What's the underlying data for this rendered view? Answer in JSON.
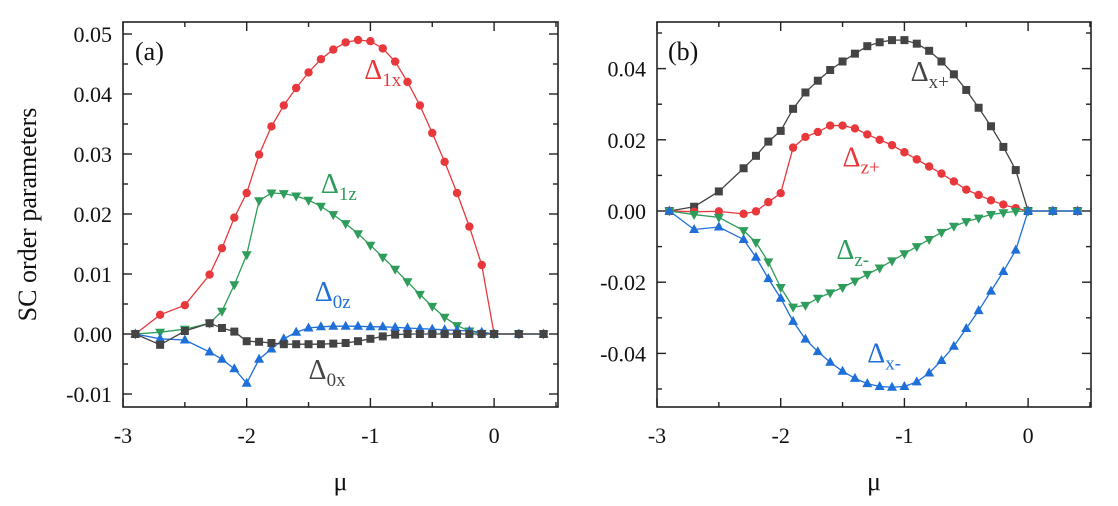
{
  "chart_data": [
    {
      "panel": "a",
      "type": "line",
      "panel_label": "(a)",
      "xlabel": "μ",
      "ylabel": "SC order parameters",
      "xlim": [
        -3.05,
        0.5
      ],
      "ylim": [
        -0.012,
        0.052
      ],
      "xticks": [
        -3,
        -2,
        -1,
        0
      ],
      "xtick_labels": [
        "-3",
        "-2",
        "-1",
        "0"
      ],
      "yticks": [
        -0.01,
        0.0,
        0.01,
        0.02,
        0.03,
        0.04,
        0.05
      ],
      "ytick_labels": [
        "-0.01",
        "0.00",
        "0.01",
        "0.02",
        "0.03",
        "0.04",
        "0.05"
      ],
      "grid": false,
      "x": [
        -2.9,
        -2.7,
        -2.5,
        -2.3,
        -2.2,
        -2.1,
        -2.0,
        -1.9,
        -1.8,
        -1.7,
        -1.6,
        -1.5,
        -1.4,
        -1.3,
        -1.2,
        -1.1,
        -1.0,
        -0.9,
        -0.8,
        -0.7,
        -0.6,
        -0.5,
        -0.4,
        -0.3,
        -0.2,
        -0.1,
        0.0,
        0.2,
        0.4
      ],
      "series": [
        {
          "name": "Δ1x",
          "base": "Δ",
          "sub": "1x",
          "color": "#e8383b",
          "marker": "circle",
          "values": [
            0.0,
            0.0032,
            0.0048,
            0.0099,
            0.0143,
            0.0194,
            0.0235,
            0.0299,
            0.0346,
            0.0381,
            0.041,
            0.0436,
            0.0458,
            0.0474,
            0.0486,
            0.049,
            0.0488,
            0.0476,
            0.0454,
            0.042,
            0.0381,
            0.0335,
            0.0287,
            0.0235,
            0.0179,
            0.0115,
            0.0,
            0.0,
            0.0
          ]
        },
        {
          "name": "Δ1z",
          "base": "Δ",
          "sub": "1z",
          "color": "#2e9c5a",
          "marker": "triangle-down",
          "values": [
            0.0,
            0.0003,
            0.0008,
            0.0018,
            0.0038,
            0.0082,
            0.0132,
            0.0222,
            0.0235,
            0.0234,
            0.023,
            0.0223,
            0.0213,
            0.0199,
            0.0184,
            0.0167,
            0.0148,
            0.0128,
            0.0108,
            0.0087,
            0.0066,
            0.0046,
            0.0028,
            0.0014,
            0.0005,
            0.0001,
            0.0,
            0.0,
            0.0
          ]
        },
        {
          "name": "Δ0z",
          "base": "Δ",
          "sub": "0z",
          "color": "#1f6fd9",
          "marker": "triangle-up",
          "values": [
            0.0,
            -0.0008,
            -0.001,
            -0.003,
            -0.0042,
            -0.0058,
            -0.0082,
            -0.0042,
            -0.0025,
            -0.0008,
            0.0003,
            0.001,
            0.0012,
            0.0013,
            0.0013,
            0.0013,
            0.0012,
            0.0012,
            0.0011,
            0.001,
            0.0009,
            0.0008,
            0.0007,
            0.0006,
            0.0005,
            0.0003,
            0.0,
            0.0,
            0.0
          ]
        },
        {
          "name": "Δ0x",
          "base": "Δ",
          "sub": "0x",
          "color": "#444444",
          "marker": "square",
          "values": [
            0.0,
            -0.0018,
            0.0005,
            0.0018,
            0.001,
            0.0004,
            -0.0012,
            -0.0013,
            -0.0015,
            -0.0017,
            -0.0017,
            -0.0017,
            -0.0017,
            -0.0016,
            -0.0015,
            -0.0012,
            -0.0008,
            -0.0004,
            -0.0001,
            0.0,
            0.0,
            0.0,
            0.0,
            0.0,
            0.0,
            0.0,
            0.0,
            0.0,
            0.0
          ]
        }
      ],
      "annotations": [
        {
          "series": "Δ1x",
          "x": -1.05,
          "y": 0.0425
        },
        {
          "series": "Δ1z",
          "x": -1.4,
          "y": 0.0235
        },
        {
          "series": "Δ0z",
          "x": -1.45,
          "y": 0.0055
        },
        {
          "series": "Δ0x",
          "x": -1.5,
          "y": -0.0075
        }
      ]
    },
    {
      "panel": "b",
      "type": "line",
      "panel_label": "(b)",
      "xlabel": "μ",
      "ylabel": "",
      "xlim": [
        -3.05,
        0.5
      ],
      "ylim": [
        -0.055,
        0.055
      ],
      "xticks": [
        -3,
        -2,
        -1,
        0
      ],
      "xtick_labels": [
        "-3",
        "-2",
        "-1",
        "0"
      ],
      "yticks": [
        -0.04,
        -0.02,
        0.0,
        0.02,
        0.04
      ],
      "ytick_labels": [
        "-0.04",
        "-0.02",
        "0.00",
        "0.02",
        "0.04"
      ],
      "grid": false,
      "x": [
        -2.9,
        -2.7,
        -2.5,
        -2.3,
        -2.2,
        -2.1,
        -2.0,
        -1.9,
        -1.8,
        -1.7,
        -1.6,
        -1.5,
        -1.4,
        -1.3,
        -1.2,
        -1.1,
        -1.0,
        -0.9,
        -0.8,
        -0.7,
        -0.6,
        -0.5,
        -0.4,
        -0.3,
        -0.2,
        -0.1,
        0.0,
        0.2,
        0.4
      ],
      "series": [
        {
          "name": "Δx+",
          "base": "Δ",
          "sub": "x+",
          "color": "#444444",
          "marker": "square",
          "values": [
            0.0,
            0.0012,
            0.0055,
            0.012,
            0.0155,
            0.0195,
            0.0225,
            0.0287,
            0.0333,
            0.0366,
            0.0396,
            0.042,
            0.0442,
            0.0463,
            0.0474,
            0.048,
            0.048,
            0.047,
            0.045,
            0.042,
            0.0384,
            0.034,
            0.029,
            0.0238,
            0.018,
            0.0115,
            0.0,
            0.0,
            0.0
          ]
        },
        {
          "name": "Δz+",
          "base": "Δ",
          "sub": "z+",
          "color": "#e8383b",
          "marker": "circle",
          "values": [
            0.0,
            -0.0002,
            -0.0001,
            -0.0008,
            -0.0001,
            0.0025,
            0.005,
            0.0178,
            0.0208,
            0.0222,
            0.024,
            0.024,
            0.0232,
            0.0215,
            0.02,
            0.0185,
            0.0165,
            0.0145,
            0.0125,
            0.0105,
            0.0083,
            0.006,
            0.0045,
            0.003,
            0.0018,
            0.0008,
            0.0,
            0.0,
            0.0
          ]
        },
        {
          "name": "Δz-",
          "base": "Δ",
          "sub": "z-",
          "color": "#2e9c5a",
          "marker": "triangle-down",
          "values": [
            0.0,
            -0.001,
            -0.0018,
            -0.0055,
            -0.0088,
            -0.0143,
            -0.0215,
            -0.027,
            -0.0265,
            -0.0245,
            -0.023,
            -0.0215,
            -0.0197,
            -0.0178,
            -0.016,
            -0.014,
            -0.012,
            -0.01,
            -0.008,
            -0.006,
            -0.0043,
            -0.003,
            -0.002,
            -0.001,
            -0.0005,
            -0.0001,
            0.0,
            0.0,
            0.0
          ]
        },
        {
          "name": "Δx-",
          "base": "Δ",
          "sub": "x-",
          "color": "#1f6fd9",
          "marker": "triangle-up",
          "values": [
            0.0,
            -0.0052,
            -0.0045,
            -0.008,
            -0.013,
            -0.019,
            -0.0245,
            -0.031,
            -0.036,
            -0.0395,
            -0.0425,
            -0.045,
            -0.047,
            -0.0485,
            -0.0493,
            -0.0495,
            -0.0493,
            -0.048,
            -0.0455,
            -0.042,
            -0.038,
            -0.033,
            -0.028,
            -0.0225,
            -0.017,
            -0.011,
            0.0,
            0.0,
            0.0
          ]
        }
      ],
      "annotations": [
        {
          "series": "Δx+",
          "x": -0.95,
          "y": 0.0365
        },
        {
          "series": "Δz+",
          "x": -1.5,
          "y": 0.0125
        },
        {
          "series": "Δz-",
          "x": -1.55,
          "y": -0.0135
        },
        {
          "series": "Δx-",
          "x": -1.3,
          "y": -0.0425
        }
      ]
    }
  ]
}
